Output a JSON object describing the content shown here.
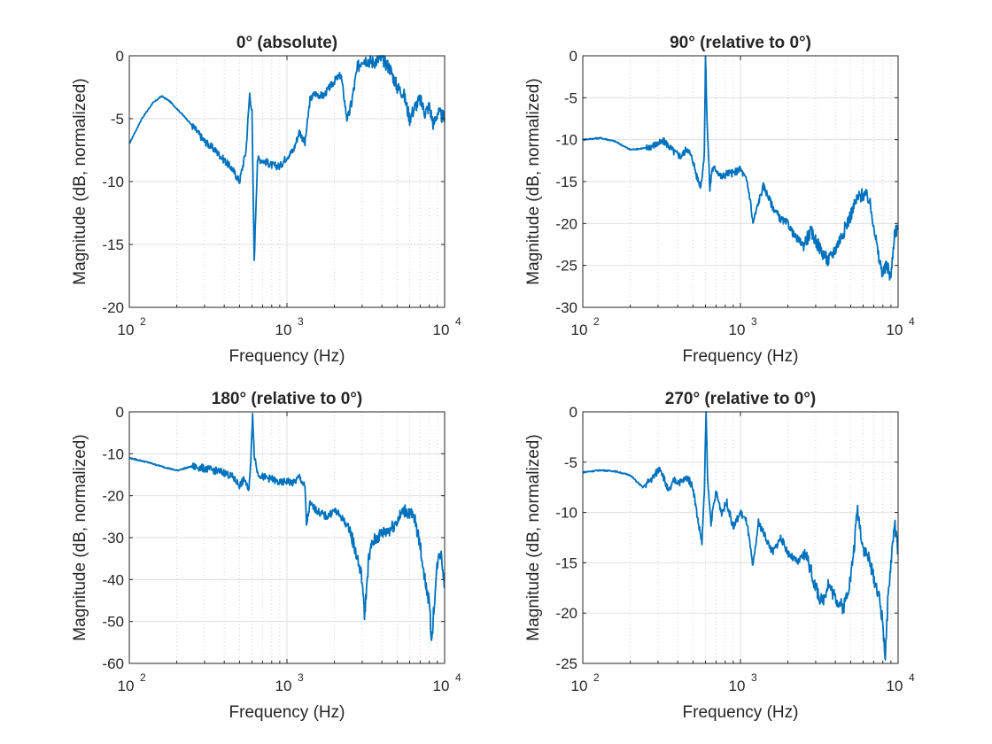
{
  "chart_data": [
    {
      "type": "line",
      "title": "0° (absolute)",
      "xlabel": "Frequency (Hz)",
      "ylabel": "Magnitude (dB, normalized)",
      "x_scale": "log",
      "xlim": [
        100,
        10000
      ],
      "ylim": [
        -20,
        0
      ],
      "yticks": [
        -20,
        -15,
        -10,
        -5,
        0
      ],
      "xtick_labels": [
        "10",
        "10",
        "10"
      ],
      "xtick_exponents": [
        "2",
        "3",
        "4"
      ],
      "grid": true,
      "color": "#0072BD",
      "series": [
        {
          "x": [
            100,
            120,
            140,
            160,
            180,
            200,
            230,
            260,
            300,
            350,
            400,
            450,
            500,
            550,
            580,
            600,
            620,
            650,
            700,
            750,
            800,
            900,
            1000,
            1100,
            1200,
            1300,
            1400,
            1500,
            1700,
            2000,
            2200,
            2400,
            2500,
            2800,
            3000,
            3200,
            3500,
            4000,
            4500,
            5000,
            5500,
            6000,
            6500,
            7000,
            7500,
            8000,
            8500,
            9000,
            10000
          ],
          "y": [
            -7.0,
            -5.0,
            -3.8,
            -3.2,
            -3.6,
            -4.2,
            -5.0,
            -5.8,
            -6.8,
            -7.5,
            -8.3,
            -9.0,
            -10.0,
            -7.5,
            -3.0,
            -4.5,
            -16.2,
            -8.2,
            -8.3,
            -8.5,
            -8.7,
            -8.8,
            -8.0,
            -7.5,
            -6.0,
            -7.0,
            -3.5,
            -3.0,
            -3.2,
            -2.0,
            -1.5,
            -5.0,
            -4.5,
            -1.0,
            -0.2,
            -0.3,
            -0.5,
            -0.2,
            -1.0,
            -2.5,
            -3.0,
            -5.0,
            -4.0,
            -3.5,
            -4.5,
            -4.0,
            -5.5,
            -4.5,
            -5.0
          ]
        }
      ]
    },
    {
      "type": "line",
      "title": "90° (relative to 0°)",
      "xlabel": "Frequency (Hz)",
      "ylabel": "Magnitude (dB, normalized)",
      "x_scale": "log",
      "xlim": [
        100,
        10000
      ],
      "ylim": [
        -30,
        0
      ],
      "yticks": [
        -30,
        -25,
        -20,
        -15,
        -10,
        -5,
        0
      ],
      "xtick_labels": [
        "10",
        "10",
        "10"
      ],
      "xtick_exponents": [
        "2",
        "3",
        "4"
      ],
      "grid": true,
      "color": "#0072BD",
      "series": [
        {
          "x": [
            100,
            130,
            160,
            200,
            250,
            300,
            330,
            380,
            420,
            460,
            500,
            530,
            560,
            590,
            600,
            615,
            640,
            660,
            700,
            760,
            820,
            900,
            1000,
            1100,
            1150,
            1200,
            1300,
            1400,
            1600,
            1800,
            2000,
            2200,
            2500,
            2800,
            3200,
            3600,
            4000,
            4500,
            5000,
            5500,
            6000,
            6500,
            7000,
            7500,
            8000,
            8500,
            9000,
            9500,
            10000
          ],
          "y": [
            -10.0,
            -9.8,
            -10.2,
            -11.2,
            -11.0,
            -10.5,
            -10.2,
            -11.5,
            -12.0,
            -11.0,
            -12.5,
            -14.5,
            -15.5,
            -12.0,
            0.0,
            -8.0,
            -16.0,
            -13.5,
            -13.5,
            -14.5,
            -14.0,
            -14.0,
            -13.5,
            -15.0,
            -17.0,
            -20.0,
            -17.5,
            -15.5,
            -18.0,
            -19.5,
            -20.0,
            -21.5,
            -22.5,
            -21.0,
            -23.0,
            -24.5,
            -23.0,
            -21.0,
            -19.0,
            -17.0,
            -16.5,
            -17.0,
            -20.0,
            -24.0,
            -26.0,
            -25.0,
            -26.5,
            -21.0,
            -20.5
          ]
        }
      ]
    },
    {
      "type": "line",
      "title": "180° (relative to 0°)",
      "xlabel": "Frequency (Hz)",
      "ylabel": "Magnitude (dB, normalized)",
      "x_scale": "log",
      "xlim": [
        100,
        10000
      ],
      "ylim": [
        -60,
        0
      ],
      "yticks": [
        -60,
        -50,
        -40,
        -30,
        -20,
        -10,
        0
      ],
      "xtick_labels": [
        "10",
        "10",
        "10"
      ],
      "xtick_exponents": [
        "2",
        "3",
        "4"
      ],
      "grid": true,
      "color": "#0072BD",
      "series": [
        {
          "x": [
            100,
            130,
            160,
            200,
            250,
            300,
            350,
            400,
            450,
            500,
            540,
            570,
            590,
            605,
            620,
            650,
            700,
            800,
            900,
            1000,
            1100,
            1200,
            1300,
            1330,
            1400,
            1600,
            1800,
            2000,
            2200,
            2500,
            2800,
            3000,
            3100,
            3300,
            3500,
            4000,
            4500,
            5000,
            5500,
            6000,
            6500,
            7000,
            7500,
            8000,
            8300,
            8500,
            9000,
            9500,
            10000
          ],
          "y": [
            -11.0,
            -12.0,
            -13.0,
            -14.0,
            -13.0,
            -13.5,
            -14.0,
            -14.5,
            -15.5,
            -17.5,
            -16.0,
            -19.0,
            -12.0,
            0.0,
            -10.0,
            -14.5,
            -15.5,
            -16.0,
            -17.0,
            -16.5,
            -17.0,
            -15.5,
            -18.0,
            -27.0,
            -22.0,
            -24.0,
            -25.0,
            -23.5,
            -25.0,
            -28.0,
            -35.0,
            -40.0,
            -49.0,
            -35.0,
            -31.0,
            -29.0,
            -28.0,
            -26.0,
            -23.5,
            -24.0,
            -26.0,
            -32.0,
            -40.0,
            -46.0,
            -55.0,
            -48.0,
            -36.0,
            -33.0,
            -42.0
          ]
        }
      ]
    },
    {
      "type": "line",
      "title": "270° (relative to 0°)",
      "xlabel": "Frequency (Hz)",
      "ylabel": "Magnitude (dB, normalized)",
      "x_scale": "log",
      "xlim": [
        100,
        10000
      ],
      "ylim": [
        -25,
        0
      ],
      "yticks": [
        -25,
        -20,
        -15,
        -10,
        -5,
        0
      ],
      "xtick_labels": [
        "10",
        "10",
        "10"
      ],
      "xtick_exponents": [
        "2",
        "3",
        "4"
      ],
      "grid": true,
      "color": "#0072BD",
      "series": [
        {
          "x": [
            100,
            130,
            160,
            200,
            240,
            280,
            310,
            350,
            380,
            420,
            460,
            500,
            540,
            570,
            590,
            605,
            620,
            650,
            700,
            760,
            820,
            900,
            1000,
            1100,
            1200,
            1300,
            1400,
            1600,
            1800,
            2000,
            2300,
            2600,
            3000,
            3300,
            3600,
            4000,
            4500,
            5000,
            5300,
            5500,
            6000,
            6500,
            7000,
            7500,
            8000,
            8300,
            8600,
            9000,
            9500,
            10000
          ],
          "y": [
            -6.0,
            -5.8,
            -5.9,
            -6.3,
            -7.5,
            -6.5,
            -5.5,
            -8.0,
            -6.8,
            -7.0,
            -6.5,
            -7.5,
            -11.0,
            -13.0,
            -8.0,
            0.0,
            -7.0,
            -11.0,
            -8.0,
            -10.0,
            -9.0,
            -11.5,
            -10.0,
            -11.0,
            -15.5,
            -11.0,
            -12.0,
            -14.0,
            -12.5,
            -14.0,
            -15.0,
            -14.0,
            -17.5,
            -19.0,
            -17.0,
            -18.5,
            -19.5,
            -16.5,
            -13.0,
            -9.5,
            -13.5,
            -14.5,
            -16.5,
            -18.0,
            -21.0,
            -24.5,
            -19.0,
            -15.0,
            -11.0,
            -14.0
          ]
        }
      ]
    }
  ]
}
